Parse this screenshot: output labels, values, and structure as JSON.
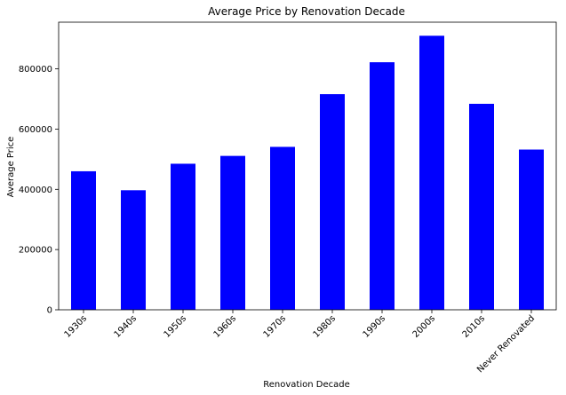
{
  "chart_data": {
    "type": "bar",
    "title": "Average Price by Renovation Decade",
    "xlabel": "Renovation Decade",
    "ylabel": "Average Price",
    "categories": [
      "1930s",
      "1940s",
      "1950s",
      "1960s",
      "1970s",
      "1980s",
      "1990s",
      "2000s",
      "2010s",
      "Never Renovated"
    ],
    "values": [
      460000,
      397000,
      485000,
      511000,
      541000,
      716000,
      822000,
      910000,
      684000,
      532000
    ],
    "ylim": [
      0,
      955000
    ],
    "yticks": [
      0,
      200000,
      400000,
      600000,
      800000
    ],
    "ytick_labels": [
      "0",
      "200000",
      "400000",
      "600000",
      "800000"
    ],
    "bar_color": "#0000ff",
    "grid": false,
    "legend": false
  }
}
